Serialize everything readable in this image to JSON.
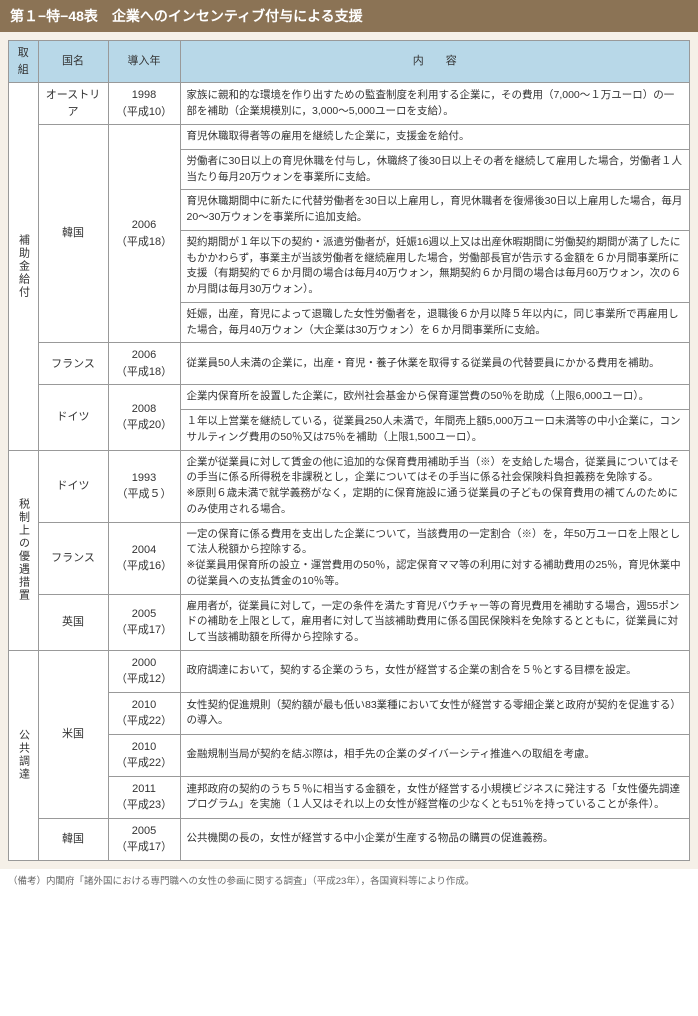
{
  "title": "第１−特−48表　企業へのインセンティブ付与による支援",
  "headers": {
    "c1": "取組",
    "c2": "国名",
    "c3": "導入年",
    "c4": "内　　容"
  },
  "groups": {
    "g1": "補助金給付",
    "g2": "税制上の優遇措置",
    "g3": "公共調達"
  },
  "rows": {
    "r1": {
      "country": "オーストリア",
      "year": "1998\n（平成10）",
      "content": "家族に親和的な環境を作り出すための監査制度を利用する企業に，その費用（7,000〜１万ユーロ）の一部を補助（企業規模別に，3,000〜5,000ユーロを支給）。"
    },
    "r2": {
      "country": "韓国",
      "year": "2006\n（平成18）",
      "content": "育児休職取得者等の雇用を継続した企業に，支援金を給付。"
    },
    "r3": {
      "content": "労働者に30日以上の育児休職を付与し，休職終了後30日以上その者を継続して雇用した場合，労働者１人当たり毎月20万ウォンを事業所に支給。"
    },
    "r4": {
      "content": "育児休職期間中に新たに代替労働者を30日以上雇用し，育児休職者を復帰後30日以上雇用した場合，毎月20〜30万ウォンを事業所に追加支給。"
    },
    "r5": {
      "content": "契約期間が１年以下の契約・派遣労働者が，妊娠16週以上又は出産休暇期間に労働契約期間が満了したにもかかわらず，事業主が当該労働者を継続雇用した場合，労働部長官が告示する金額を６か月間事業所に支援（有期契約で６か月間の場合は毎月40万ウォン，無期契約６か月間の場合は毎月60万ウォン，次の６か月間は毎月30万ウォン）。"
    },
    "r6": {
      "content": "妊娠，出産，育児によって退職した女性労働者を，退職後６か月以降５年以内に，同じ事業所で再雇用した場合，毎月40万ウォン（大企業は30万ウォン）を６か月間事業所に支給。"
    },
    "r7": {
      "country": "フランス",
      "year": "2006\n（平成18）",
      "content": "従業員50人未満の企業に，出産・育児・養子休業を取得する従業員の代替要員にかかる費用を補助。"
    },
    "r8": {
      "country": "ドイツ",
      "year": "2008\n（平成20）",
      "content": "企業内保育所を設置した企業に，欧州社会基金から保育運営費の50％を助成（上限6,000ユーロ）。"
    },
    "r9": {
      "content": "１年以上営業を継続している，従業員250人未満で，年間売上額5,000万ユーロ未満等の中小企業に，コンサルティング費用の50％又は75％を補助（上限1,500ユーロ）。"
    },
    "r10": {
      "country": "ドイツ",
      "year": "1993\n（平成５）",
      "content": "企業が従業員に対して賃金の他に追加的な保育費用補助手当（※）を支給した場合，従業員についてはその手当に係る所得税を非課税とし，企業についてはその手当に係る社会保険料負担義務を免除する。\n※原則６歳未満で就学義務がなく，定期的に保育施設に通う従業員の子どもの保育費用の補てんのためにのみ使用される場合。"
    },
    "r11": {
      "country": "フランス",
      "year": "2004\n（平成16）",
      "content": "一定の保育に係る費用を支出した企業について，当該費用の一定割合（※）を，年50万ユーロを上限として法人税額から控除する。\n※従業員用保育所の設立・運営費用の50％，認定保育ママ等の利用に対する補助費用の25％，育児休業中の従業員への支払賃金の10％等。"
    },
    "r12": {
      "country": "英国",
      "year": "2005\n（平成17）",
      "content": "雇用者が，従業員に対して，一定の条件を満たす育児バウチャー等の育児費用を補助する場合，週55ポンドの補助を上限として，雇用者に対して当該補助費用に係る国民保険料を免除するとともに，従業員に対して当該補助額を所得から控除する。"
    },
    "r13": {
      "country": "米国",
      "year": "2000\n（平成12）",
      "content": "政府調達において，契約する企業のうち，女性が経営する企業の割合を５％とする目標を設定。"
    },
    "r14": {
      "year": "2010\n（平成22）",
      "content": "女性契約促進規則（契約額が最も低い83業種において女性が経営する零細企業と政府が契約を促進する）の導入。"
    },
    "r15": {
      "year": "2010\n（平成22）",
      "content": "金融規制当局が契約を結ぶ際は，相手先の企業のダイバーシティ推進への取組を考慮。"
    },
    "r16": {
      "year": "2011\n（平成23）",
      "content": "連邦政府の契約のうち５％に相当する金額を，女性が経営する小規模ビジネスに発注する「女性優先調達プログラム」を実施（１人又はそれ以上の女性が経営権の少なくとも51％を持っていることが条件）。"
    },
    "r17": {
      "country": "韓国",
      "year": "2005\n（平成17）",
      "content": "公共機関の長の，女性が経営する中小企業が生産する物品の購買の促進義務。"
    }
  },
  "footnote": "（備考）内閣府「諸外国における専門職への女性の参画に関する調査」（平成23年），各国資料等により作成。"
}
